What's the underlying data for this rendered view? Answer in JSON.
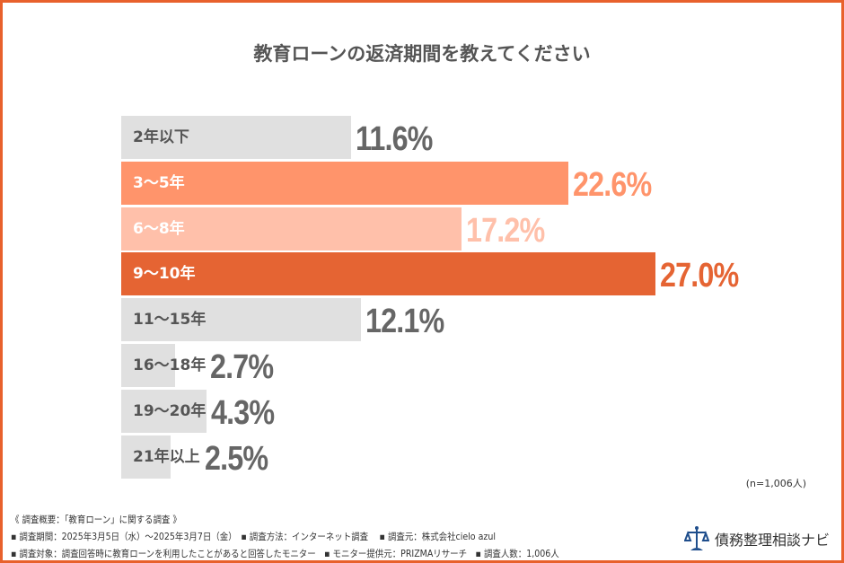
{
  "chart_data": {
    "type": "bar",
    "orientation": "horizontal",
    "title": "教育ローンの返済期間を教えてください",
    "categories": [
      "2年以下",
      "3〜5年",
      "6〜8年",
      "9〜10年",
      "11〜15年",
      "16〜18年",
      "19〜20年",
      "21年以上"
    ],
    "values": [
      11.6,
      22.6,
      17.2,
      27.0,
      12.1,
      2.7,
      4.3,
      2.5
    ],
    "value_labels": [
      "11.6%",
      "22.6%",
      "17.2%",
      "27.0%",
      "12.1%",
      "2.7%",
      "4.3%",
      "2.5%"
    ],
    "bar_colors": [
      "#e0e0e0",
      "#ff946b",
      "#ffc0aa",
      "#e56433",
      "#e0e0e0",
      "#e0e0e0",
      "#e0e0e0",
      "#e0e0e0"
    ],
    "label_colors": [
      "#555555",
      "#ffffff",
      "#ffffff",
      "#ffffff",
      "#555555",
      "#555555",
      "#555555",
      "#555555"
    ],
    "value_colors": [
      "#666666",
      "#ff946b",
      "#ffc0aa",
      "#e56433",
      "#666666",
      "#666666",
      "#666666",
      "#666666"
    ],
    "xlim": [
      0,
      27.0
    ],
    "grid": false,
    "note": "(n=1,006人)"
  },
  "footer": {
    "lines": [
      "《 調査概要：「教育ローン」に関する調査 》",
      "▪ 調査期間：2025年3月5日（水）〜2025年3月7日（金）　▪ 調査方法：インターネット調査　 ▪ 調査元：株式会社cielo azul",
      "▪ 調査対象：調査回答時に教育ローンを利用したことがあると回答したモニター　▪ モニター提供元：PRIZMAリサーチ　▪ 調査人数：1,006人"
    ],
    "logo_text": "債務整理相談ナビ"
  },
  "colors": {
    "frame": "#e8612c",
    "logo": "#1f4e8c"
  }
}
